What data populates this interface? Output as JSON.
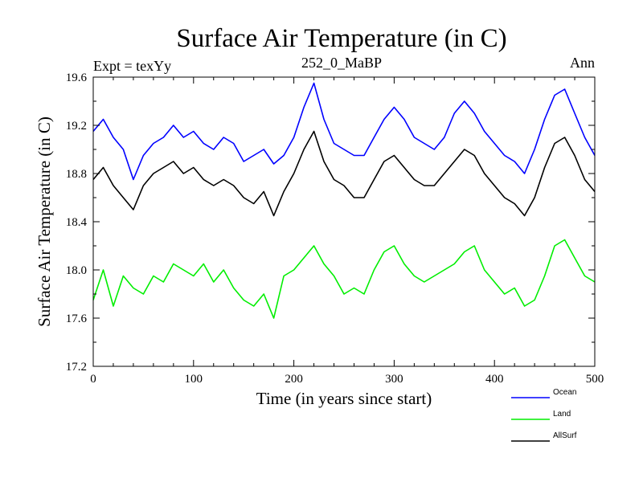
{
  "chart_data": {
    "type": "line",
    "title": "Surface Air Temperature (in C)",
    "subtitle": "252_0_MaBP",
    "left_header": "Expt = texYy",
    "right_header": "Ann",
    "xlabel": "Time (in years since start)",
    "ylabel": "Surface Air Temperature (in C)",
    "xlim": [
      0,
      500
    ],
    "ylim": [
      17.2,
      19.6
    ],
    "x_ticks": [
      0,
      100,
      200,
      300,
      400,
      500
    ],
    "x_tick_labels": [
      "0",
      "100",
      "200",
      "300",
      "400",
      "500"
    ],
    "y_ticks": [
      17.2,
      17.6,
      18.0,
      18.4,
      18.8,
      19.2,
      19.6
    ],
    "y_tick_labels": [
      "17.2",
      "17.6",
      "18.0",
      "18.4",
      "18.8",
      "19.2",
      "19.6"
    ],
    "legend_position": "bottom-right, below plot",
    "grid": false,
    "series": [
      {
        "name": "Ocean",
        "color": "#0000ff",
        "x": [
          0,
          10,
          20,
          30,
          40,
          50,
          60,
          70,
          80,
          90,
          100,
          110,
          120,
          130,
          140,
          150,
          160,
          170,
          180,
          190,
          200,
          210,
          220,
          230,
          240,
          250,
          260,
          270,
          280,
          290,
          300,
          310,
          320,
          330,
          340,
          350,
          360,
          370,
          380,
          390,
          400,
          410,
          420,
          430,
          440,
          450,
          460,
          470,
          480,
          490,
          500
        ],
        "values": [
          19.15,
          19.25,
          19.1,
          19.0,
          18.75,
          18.95,
          19.05,
          19.1,
          19.2,
          19.1,
          19.15,
          19.05,
          19.0,
          19.1,
          19.05,
          18.9,
          18.95,
          19.0,
          18.88,
          18.95,
          19.1,
          19.35,
          19.55,
          19.25,
          19.05,
          19.0,
          18.95,
          18.95,
          19.1,
          19.25,
          19.35,
          19.25,
          19.1,
          19.05,
          19.0,
          19.1,
          19.3,
          19.4,
          19.3,
          19.15,
          19.05,
          18.95,
          18.9,
          18.8,
          19.0,
          19.25,
          19.45,
          19.5,
          19.3,
          19.1,
          18.95
        ]
      },
      {
        "name": "Land",
        "color": "#00ee00",
        "x": [
          0,
          10,
          20,
          30,
          40,
          50,
          60,
          70,
          80,
          90,
          100,
          110,
          120,
          130,
          140,
          150,
          160,
          170,
          180,
          190,
          200,
          210,
          220,
          230,
          240,
          250,
          260,
          270,
          280,
          290,
          300,
          310,
          320,
          330,
          340,
          350,
          360,
          370,
          380,
          390,
          400,
          410,
          420,
          430,
          440,
          450,
          460,
          470,
          480,
          490,
          500
        ],
        "values": [
          17.75,
          18.0,
          17.7,
          17.95,
          17.85,
          17.8,
          17.95,
          17.9,
          18.05,
          18.0,
          17.95,
          18.05,
          17.9,
          18.0,
          17.85,
          17.75,
          17.7,
          17.8,
          17.6,
          17.95,
          18.0,
          18.1,
          18.2,
          18.05,
          17.95,
          17.8,
          17.85,
          17.8,
          18.0,
          18.15,
          18.2,
          18.05,
          17.95,
          17.9,
          17.95,
          18.0,
          18.05,
          18.15,
          18.2,
          18.0,
          17.9,
          17.8,
          17.85,
          17.7,
          17.75,
          17.95,
          18.2,
          18.25,
          18.1,
          17.95,
          17.9
        ]
      },
      {
        "name": "AllSurf",
        "color": "#000000",
        "x": [
          0,
          10,
          20,
          30,
          40,
          50,
          60,
          70,
          80,
          90,
          100,
          110,
          120,
          130,
          140,
          150,
          160,
          170,
          180,
          190,
          200,
          210,
          220,
          230,
          240,
          250,
          260,
          270,
          280,
          290,
          300,
          310,
          320,
          330,
          340,
          350,
          360,
          370,
          380,
          390,
          400,
          410,
          420,
          430,
          440,
          450,
          460,
          470,
          480,
          490,
          500
        ],
        "values": [
          18.75,
          18.85,
          18.7,
          18.6,
          18.5,
          18.7,
          18.8,
          18.85,
          18.9,
          18.8,
          18.85,
          18.75,
          18.7,
          18.75,
          18.7,
          18.6,
          18.55,
          18.65,
          18.45,
          18.65,
          18.8,
          19.0,
          19.15,
          18.9,
          18.75,
          18.7,
          18.6,
          18.6,
          18.75,
          18.9,
          18.95,
          18.85,
          18.75,
          18.7,
          18.7,
          18.8,
          18.9,
          19.0,
          18.95,
          18.8,
          18.7,
          18.6,
          18.55,
          18.45,
          18.6,
          18.85,
          19.05,
          19.1,
          18.95,
          18.75,
          18.65
        ]
      }
    ]
  }
}
